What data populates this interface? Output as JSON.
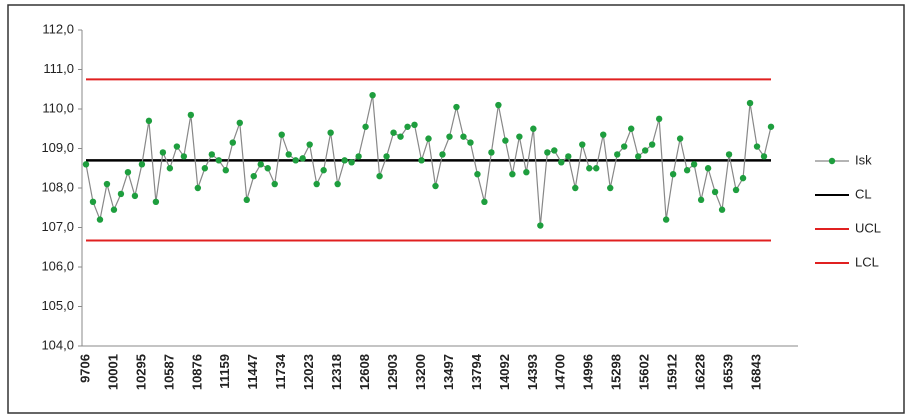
{
  "chart_data": {
    "type": "line",
    "categories": [
      "9706",
      null,
      null,
      null,
      "10001",
      null,
      null,
      null,
      "10295",
      null,
      null,
      null,
      "10587",
      null,
      null,
      null,
      "10876",
      null,
      null,
      null,
      "11159",
      null,
      null,
      null,
      "11447",
      null,
      null,
      null,
      "11734",
      null,
      null,
      null,
      "12023",
      null,
      null,
      null,
      "12318",
      null,
      null,
      null,
      "12608",
      null,
      null,
      null,
      "12903",
      null,
      null,
      null,
      "13200",
      null,
      null,
      null,
      "13497",
      null,
      null,
      null,
      "13794",
      null,
      null,
      null,
      "14092",
      null,
      null,
      null,
      "14393",
      null,
      null,
      null,
      "14700",
      null,
      null,
      null,
      "14996",
      null,
      null,
      null,
      "15298",
      null,
      null,
      null,
      "15602",
      null,
      null,
      null,
      "15912",
      null,
      null,
      null,
      "16228",
      null,
      null,
      null,
      "16539",
      null,
      null,
      null,
      "16843",
      null,
      null
    ],
    "series": [
      {
        "name": "Isk",
        "color": "#1e9e3e",
        "values": [
          108.6,
          107.65,
          107.2,
          108.1,
          107.45,
          107.85,
          108.4,
          107.8,
          108.6,
          109.7,
          107.65,
          108.9,
          108.5,
          109.05,
          108.8,
          109.85,
          108.0,
          108.5,
          108.85,
          108.7,
          108.45,
          109.15,
          109.65,
          107.7,
          108.3,
          108.6,
          108.5,
          108.1,
          109.35,
          108.85,
          108.7,
          108.75,
          109.1,
          108.1,
          108.45,
          109.4,
          108.1,
          108.7,
          108.65,
          108.8,
          109.55,
          110.35,
          108.3,
          108.8,
          109.4,
          109.3,
          109.55,
          109.6,
          108.7,
          109.25,
          108.05,
          108.85,
          109.3,
          110.05,
          109.3,
          109.15,
          108.35,
          107.65,
          108.9,
          110.1,
          109.2,
          108.35,
          109.3,
          108.4,
          109.5,
          107.05,
          108.9,
          108.95,
          108.65,
          108.8,
          108.0,
          109.1,
          108.5,
          108.5,
          109.35,
          108.0,
          108.85,
          109.05,
          109.5,
          108.8,
          108.95,
          109.1,
          109.75,
          107.2,
          108.35,
          109.25,
          108.45,
          108.6,
          107.7,
          108.5,
          107.9,
          107.45,
          108.85,
          107.95,
          108.25,
          110.15,
          109.05,
          108.8,
          109.55
        ]
      }
    ],
    "control_lines": [
      {
        "name": "CL",
        "value": 108.7,
        "color": "#000000"
      },
      {
        "name": "UCL",
        "value": 110.75,
        "color": "#e02020"
      },
      {
        "name": "LCL",
        "value": 106.67,
        "color": "#e02020"
      }
    ],
    "ylim": [
      104,
      112
    ],
    "yticks": [
      {
        "value": 104,
        "label": "104,0"
      },
      {
        "value": 105,
        "label": "105,0"
      },
      {
        "value": 106,
        "label": "106,0"
      },
      {
        "value": 107,
        "label": "107,0"
      },
      {
        "value": 108,
        "label": "108,0"
      },
      {
        "value": 109,
        "label": "109,0"
      },
      {
        "value": 110,
        "label": "110,0"
      },
      {
        "value": 111,
        "label": "111,0"
      },
      {
        "value": 112,
        "label": "112,0"
      }
    ],
    "grid": false,
    "legend": "right"
  }
}
